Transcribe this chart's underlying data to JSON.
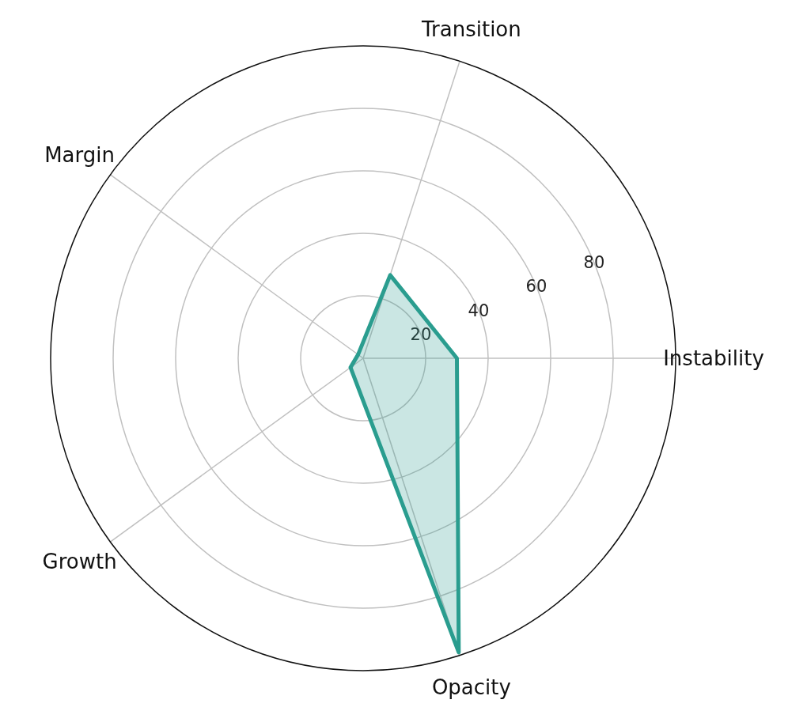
{
  "chart_data": {
    "type": "radar",
    "categories": [
      "Transition",
      "Instability",
      "Opacity",
      "Growth",
      "Margin"
    ],
    "series": [
      {
        "color": "#2a9d8f",
        "values": [
          28,
          30,
          99,
          5,
          2
        ]
      }
    ],
    "ylim": [
      0,
      100
    ],
    "yticks": [
      20,
      40,
      60,
      80
    ],
    "grid": true
  }
}
